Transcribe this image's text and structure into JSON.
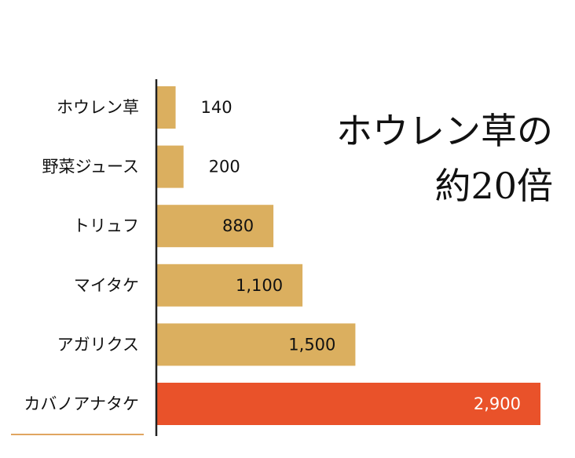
{
  "headline": {
    "line1": "ホウレン草の",
    "line2": "約20倍"
  },
  "colors": {
    "bar": "#DBAF5F",
    "highlight": "#E9522A",
    "axis": "#222222",
    "underline": "#E0A560",
    "highlight_text": "#ffffff",
    "text": "#111111"
  },
  "chart_data": {
    "type": "bar",
    "orientation": "horizontal",
    "categories": [
      "ホウレン草",
      "野菜ジュース",
      "トリュフ",
      "マイタケ",
      "アガリクス",
      "カバノアナタケ"
    ],
    "values": [
      140,
      200,
      880,
      1100,
      1500,
      2900
    ],
    "value_labels": [
      "140",
      "200",
      "880",
      "1,100",
      "1,500",
      "2,900"
    ],
    "highlight_category": "カバノアナタケ",
    "xlim": [
      0,
      2900
    ],
    "grid": false,
    "title": "",
    "xlabel": "",
    "ylabel": ""
  }
}
